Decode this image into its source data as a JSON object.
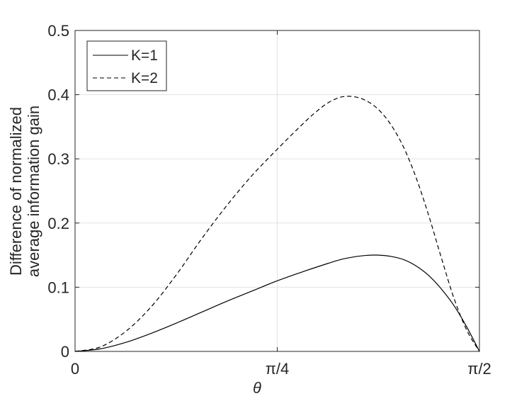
{
  "chart_data": {
    "type": "line",
    "title": "",
    "xlabel": "θ",
    "ylabel_lines": [
      "Difference of normalized",
      "average information gain"
    ],
    "xlim": [
      0,
      1.5708
    ],
    "ylim": [
      0,
      0.5
    ],
    "x_ticks": [
      {
        "value": 0,
        "label": "0"
      },
      {
        "value": 0.7854,
        "label": "π/4"
      },
      {
        "value": 1.5708,
        "label": "π/2"
      }
    ],
    "y_ticks": [
      {
        "value": 0,
        "label": "0"
      },
      {
        "value": 0.1,
        "label": "0.1"
      },
      {
        "value": 0.2,
        "label": "0.2"
      },
      {
        "value": 0.3,
        "label": "0.3"
      },
      {
        "value": 0.4,
        "label": "0.4"
      },
      {
        "value": 0.5,
        "label": "0.5"
      }
    ],
    "grid": true,
    "legend_position": "top-left",
    "series": [
      {
        "name": "K=1",
        "style": "solid",
        "color": "#000000",
        "x": [
          0,
          0.0982,
          0.1963,
          0.2945,
          0.3927,
          0.4909,
          0.589,
          0.6872,
          0.7854,
          0.8836,
          0.9817,
          1.0308,
          1.0799,
          1.129,
          1.1781,
          1.2272,
          1.2763,
          1.3254,
          1.3744,
          1.4235,
          1.4726,
          1.5217,
          1.5708
        ],
        "y": [
          0,
          0.004,
          0.014,
          0.028,
          0.044,
          0.061,
          0.078,
          0.094,
          0.11,
          0.124,
          0.137,
          0.143,
          0.147,
          0.1495,
          0.15,
          0.148,
          0.143,
          0.133,
          0.118,
          0.097,
          0.071,
          0.038,
          0
        ]
      },
      {
        "name": "K=2",
        "style": "dashed",
        "color": "#000000",
        "x": [
          0,
          0.0982,
          0.1963,
          0.2945,
          0.3927,
          0.4909,
          0.589,
          0.6872,
          0.7854,
          0.8836,
          0.9327,
          0.9817,
          1.0308,
          1.0799,
          1.129,
          1.1781,
          1.2272,
          1.2763,
          1.3254,
          1.3744,
          1.4235,
          1.4726,
          1.5217,
          1.5708
        ],
        "y": [
          0,
          0.007,
          0.031,
          0.069,
          0.119,
          0.175,
          0.227,
          0.274,
          0.315,
          0.354,
          0.372,
          0.387,
          0.396,
          0.397,
          0.391,
          0.377,
          0.353,
          0.318,
          0.27,
          0.211,
          0.145,
          0.082,
          0.033,
          0
        ]
      }
    ]
  }
}
